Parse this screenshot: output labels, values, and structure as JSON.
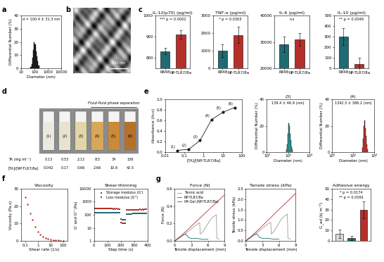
{
  "panels": [
    "a",
    "b",
    "c",
    "d",
    "e",
    "f",
    "g"
  ],
  "sem_image": {
    "scale_bar": "100 nm"
  },
  "tube_photo": {
    "tubes": [
      "(1)",
      "(2)",
      "(3)",
      "(4)",
      "(5)",
      "(6)"
    ],
    "group_label": "Fluid-fluid phase separation",
    "group_tubes": [
      "(4)",
      "(5)",
      "(6)"
    ],
    "rows": [
      {
        "label": "TA (mg ml⁻¹)",
        "values": [
          "0.13",
          "0.53",
          "2.13",
          "8.5",
          "34",
          "136"
        ]
      },
      {
        "label": "[TA]/[NP-TLR7/8a]",
        "values": [
          "0.042",
          "0.17",
          "0.66",
          "2.66",
          "10.6",
          "42.5"
        ]
      }
    ]
  },
  "chart_data": [
    {
      "type": "histogram",
      "xlabel": "Diameter (nm)",
      "ylabel": "Differential Number (%)",
      "annotations": [
        "d = 100.4 ± 31.3 nm"
      ],
      "log": "x",
      "bins": [
        50,
        58,
        67,
        78,
        90,
        104,
        120,
        139,
        161,
        187,
        216
      ],
      "counts": [
        1,
        3,
        8,
        14,
        20,
        18,
        13,
        9,
        5,
        2
      ],
      "color": "#1a1a1a",
      "xlim": [
        10,
        10000
      ],
      "xticks": [
        10,
        100,
        1000,
        10000
      ],
      "ylim": [
        0,
        40
      ],
      "yticks": [
        0,
        10,
        20,
        30,
        40
      ]
    },
    {
      "type": "bar",
      "title": "IL-12(p70) (pg/ml)",
      "categories": [
        "R848",
        "NP-TLR7/8a"
      ],
      "values": [
        830,
        910
      ],
      "errors": [
        15,
        20
      ],
      "colors": [
        "#1e6b73",
        "#b5302b"
      ],
      "ylim": [
        750,
        1000
      ],
      "yticks": [
        800,
        900,
        1000
      ],
      "annotations": [
        "*** p = 0.0002"
      ]
    },
    {
      "type": "bar",
      "title": "TNF-α (pg/ml)",
      "categories": [
        "R848",
        "NP-TLR7/8a"
      ],
      "values": [
        1000,
        1900
      ],
      "errors": [
        350,
        450
      ],
      "colors": [
        "#1e6b73",
        "#b5302b"
      ],
      "ylim": [
        0,
        3000
      ],
      "yticks": [
        0,
        1000,
        2000,
        3000
      ],
      "annotations": [
        "* p = 0.0303"
      ]
    },
    {
      "type": "bar",
      "title": "IL-6 (pg/ml)",
      "categories": [
        "R848",
        "NP-TLR7/8a"
      ],
      "values": [
        29000,
        31000
      ],
      "errors": [
        3000,
        2500
      ],
      "colors": [
        "#1e6b73",
        "#b5302b"
      ],
      "ylim": [
        20000,
        40000
      ],
      "yticks": [
        20000,
        30000,
        40000
      ],
      "annotations": [
        "n.s"
      ]
    },
    {
      "type": "bar",
      "title": "IL-10 (pg/ml)",
      "categories": [
        "R848",
        "NP-TLR7/8a"
      ],
      "values": [
        300,
        40
      ],
      "errors": [
        80,
        60
      ],
      "colors": [
        "#1e6b73",
        "#b5302b"
      ],
      "ylim": [
        0,
        500
      ],
      "yticks": [
        0,
        100,
        200,
        300,
        400,
        500
      ],
      "annotations": [
        "** p = 0.0049"
      ]
    },
    {
      "type": "line",
      "xlabel": "[TA]/[NP-TLR7/8a]",
      "ylabel": "Absorbance (A₅₀₀)",
      "x": [
        0.042,
        0.17,
        0.66,
        2.66,
        10.6,
        42.5
      ],
      "values": [
        0.03,
        0.05,
        0.22,
        0.62,
        0.76,
        0.85
      ],
      "point_labels": [
        "(1)",
        "(2)",
        "(3)",
        "(4)",
        "(5)",
        "(6)"
      ],
      "color": "#1a1a1a",
      "marker": "o",
      "log": "x",
      "xlim": [
        0.01,
        100
      ],
      "xticks": [
        0.01,
        0.1,
        1,
        10,
        100
      ],
      "ylim": [
        0.0,
        1.0
      ],
      "yticks": [
        0.0,
        0.2,
        0.4,
        0.6,
        0.8,
        1.0
      ]
    },
    {
      "type": "histogram",
      "title": "(3)",
      "xlabel": "Diameter (nm)",
      "ylabel": "Differential Number (%)",
      "annotations": [
        "139.4 ± 46.9 (nm)"
      ],
      "log": "x",
      "bins": [
        70,
        82,
        96,
        112,
        131,
        153,
        179,
        209,
        244,
        285
      ],
      "counts": [
        2,
        6,
        14,
        22,
        20,
        14,
        9,
        4,
        2
      ],
      "color": "#2a8a85",
      "xlim": [
        1,
        10000
      ],
      "xticks": [
        {
          "value": 1,
          "label": "10⁰"
        },
        {
          "value": 100,
          "label": "10²"
        },
        {
          "value": 10000,
          "label": "10⁴"
        }
      ],
      "ylim": [
        0,
        40
      ],
      "yticks": [
        0,
        20,
        40
      ]
    },
    {
      "type": "histogram",
      "title": "(4)",
      "xlabel": "Diameter (nm)",
      "ylabel": "Differential Number (%)",
      "annotations": [
        "1342.3 ± 386.2 (nm)"
      ],
      "log": "x",
      "bins": [
        700,
        820,
        960,
        1120,
        1310,
        1530,
        1790,
        2090,
        2440
      ],
      "counts": [
        3,
        10,
        20,
        24,
        18,
        12,
        6,
        2
      ],
      "color": "#b5302b",
      "xlim": [
        1,
        10000
      ],
      "xticks": [
        {
          "value": 1,
          "label": "10⁰"
        },
        {
          "value": 100,
          "label": "10²"
        },
        {
          "value": 10000,
          "label": "10⁴"
        }
      ],
      "ylim": [
        0,
        40
      ],
      "yticks": [
        0,
        20,
        40
      ]
    },
    {
      "type": "scatter",
      "title": "Viscosity",
      "xlabel": "Shear rate (1/s)",
      "ylabel": "Viscosity (Pa.s)",
      "x": [
        0.1,
        0.16,
        0.25,
        0.4,
        0.63,
        1,
        1.6,
        2.5,
        4,
        6.3,
        10,
        16,
        25,
        40,
        63,
        100
      ],
      "values": [
        25,
        21,
        16,
        12,
        8,
        5.5,
        3.8,
        2.6,
        1.8,
        1.2,
        0.8,
        0.55,
        0.4,
        0.3,
        0.2,
        0.15
      ],
      "color": "#b5302b",
      "marker": "o",
      "log": "x",
      "xlim": [
        0.05,
        200
      ],
      "xticks": [
        0.1,
        1,
        10,
        100
      ],
      "ylim": [
        0,
        30
      ],
      "yticks": [
        0,
        10,
        20,
        30
      ]
    },
    {
      "type": "scatter",
      "title": "Shear-thinning",
      "xlabel": "Step time (s)",
      "ylabel": "G' and G'' (Pa)",
      "log": "y",
      "legend": "upper center",
      "series": [
        {
          "name": "Storage modulus (G')",
          "color": "#b5302b",
          "marker": "s",
          "x": [
            0,
            10,
            20,
            30,
            40,
            50,
            60,
            70,
            80,
            90,
            100,
            110,
            120,
            130,
            140,
            150,
            160,
            170,
            180,
            190,
            200,
            210,
            220,
            230,
            240,
            250,
            260,
            270,
            280,
            290,
            300,
            310,
            320,
            330,
            340,
            350,
            360,
            370,
            380,
            390
          ],
          "values": [
            310,
            305,
            300,
            298,
            302,
            296,
            300,
            295,
            292,
            298,
            290,
            294,
            288,
            292,
            286,
            290,
            285,
            288,
            284,
            286,
            25,
            22,
            24,
            23,
            230,
            238,
            242,
            245,
            248,
            250,
            252,
            250,
            254,
            252,
            255,
            253,
            256,
            254,
            257,
            255
          ]
        },
        {
          "name": "Loss modulus (G'')",
          "color": "#1e6b73",
          "marker": "s",
          "x": [
            0,
            10,
            20,
            30,
            40,
            50,
            60,
            70,
            80,
            90,
            100,
            110,
            120,
            130,
            140,
            150,
            160,
            170,
            180,
            190,
            200,
            210,
            220,
            230,
            240,
            250,
            260,
            270,
            280,
            290,
            300,
            310,
            320,
            330,
            340,
            350,
            360,
            370,
            380,
            390
          ],
          "values": [
            150,
            148,
            147,
            149,
            146,
            148,
            145,
            147,
            144,
            146,
            143,
            145,
            142,
            144,
            141,
            143,
            140,
            142,
            139,
            141,
            45,
            42,
            44,
            43,
            110,
            115,
            118,
            120,
            121,
            122,
            123,
            122,
            124,
            123,
            125,
            124,
            126,
            125,
            127,
            126
          ]
        }
      ],
      "xlim": [
        0,
        400
      ],
      "xticks": [
        0,
        100,
        200,
        300,
        400
      ],
      "ylim": [
        1,
        10000
      ],
      "yticks": [
        1,
        10,
        100,
        1000,
        10000
      ]
    },
    {
      "type": "line",
      "title": "Force (N)",
      "xlabel": "Tensile displacement (mm)",
      "ylabel": "Force (N)",
      "legend": "upper left",
      "series": [
        {
          "name": "Tannic acid",
          "color": "#999999",
          "x": [
            0,
            1,
            2,
            3,
            4,
            4.5,
            4.6,
            5,
            5.5,
            6,
            6.5,
            7,
            7.5,
            7.6,
            8
          ],
          "values": [
            0,
            0.04,
            0.09,
            0.14,
            0.19,
            0.21,
            0.08,
            0.1,
            0.15,
            0.2,
            0.25,
            0.28,
            0.3,
            0.03,
            0.02
          ]
        },
        {
          "name": "NP-TLR7/8a",
          "color": "#1e6b73",
          "x": [
            0,
            0.5,
            1,
            1.5,
            2,
            2.5,
            3,
            4,
            5,
            6
          ],
          "values": [
            0,
            0.03,
            0.05,
            0.07,
            0.08,
            0.04,
            0.03,
            0.03,
            0.02,
            0.02
          ]
        },
        {
          "name": "IM-Gel (NP-TLR7/8a)",
          "color": "#b5302b",
          "x": [
            0,
            1,
            2,
            3,
            4,
            5,
            6,
            7,
            8,
            9
          ],
          "values": [
            0,
            0.05,
            0.11,
            0.17,
            0.23,
            0.29,
            0.35,
            0.41,
            0.47,
            0.53
          ]
        }
      ],
      "xlim": [
        0,
        9
      ],
      "xticks": [
        0,
        3,
        6,
        9
      ],
      "ylim": [
        0.0,
        0.6
      ],
      "yticks": [
        0.0,
        0.2,
        0.4,
        0.6
      ]
    },
    {
      "type": "line",
      "title": "Tensile stress (kPa)",
      "xlabel": "Tensile displacement (mm)",
      "ylabel": "Tensile stress (kPa)",
      "series": [
        {
          "color": "#999999",
          "x": [
            0,
            1,
            2,
            3,
            4,
            4.5,
            4.6,
            5,
            5.5,
            6,
            6.5,
            7,
            7.5,
            7.6,
            8
          ],
          "values": [
            0,
            0.17,
            0.39,
            0.6,
            0.82,
            0.9,
            0.34,
            0.43,
            0.65,
            0.86,
            1.08,
            1.2,
            1.29,
            0.13,
            0.09
          ]
        },
        {
          "color": "#1e6b73",
          "x": [
            0,
            0.5,
            1,
            1.5,
            2,
            2.5,
            3,
            4,
            5,
            6
          ],
          "values": [
            0,
            0.13,
            0.22,
            0.3,
            0.34,
            0.17,
            0.13,
            0.13,
            0.09,
            0.09
          ]
        },
        {
          "color": "#b5302b",
          "x": [
            0,
            1,
            2,
            3,
            4,
            5,
            6,
            7,
            8,
            9
          ],
          "values": [
            0,
            0.22,
            0.47,
            0.73,
            0.99,
            1.25,
            1.51,
            1.76,
            2.02,
            2.28
          ]
        }
      ],
      "xlim": [
        0,
        9
      ],
      "xticks": [
        0,
        3,
        6,
        9
      ],
      "ylim": [
        0.0,
        2.5
      ],
      "yticks": [
        0.0,
        0.5,
        1.0,
        1.5,
        2.0,
        2.5
      ]
    },
    {
      "type": "bar",
      "title": "Adhesive energy",
      "ylabel": "G_ad (kJ m⁻²)",
      "categories": [
        null,
        null,
        null
      ],
      "values": [
        7,
        3,
        30
      ],
      "errors": [
        4,
        2,
        8
      ],
      "colors": [
        "#d9d9d9",
        "#1e6b73",
        "#b5302b"
      ],
      "tick_labels": "y",
      "ylim": [
        0,
        50
      ],
      "yticks": [
        0,
        10,
        20,
        30,
        40,
        50
      ],
      "annotations": [
        "* p = 0.0174",
        "** p = 0.0091"
      ]
    }
  ]
}
